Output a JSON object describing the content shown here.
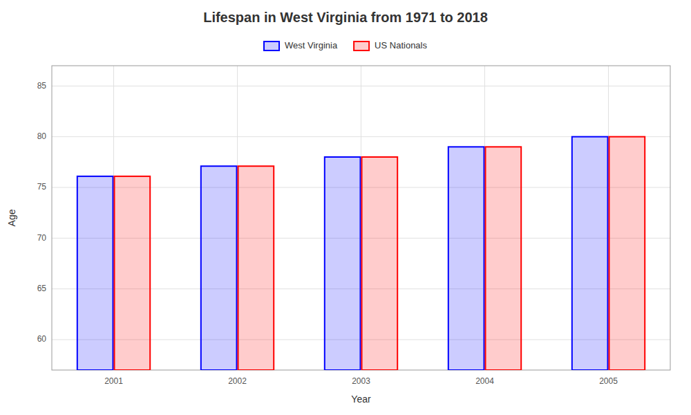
{
  "chart_data": {
    "type": "bar",
    "title": "Lifespan in West Virginia from 1971 to 2018",
    "x_label": "Year",
    "y_label": "Age",
    "categories": [
      "2001",
      "2002",
      "2003",
      "2004",
      "2005"
    ],
    "series": [
      {
        "name": "West Virginia",
        "color": "#0000ff",
        "values": [
          76.1,
          77.1,
          78.0,
          79.0,
          80.0
        ]
      },
      {
        "name": "US Nationals",
        "color": "#ff0000",
        "values": [
          76.1,
          77.1,
          78.0,
          79.0,
          80.0
        ]
      }
    ],
    "ylim": [
      57,
      87
    ],
    "yticks": [
      60,
      65,
      70,
      75,
      80,
      85
    ],
    "grid": true,
    "legend": "top"
  }
}
